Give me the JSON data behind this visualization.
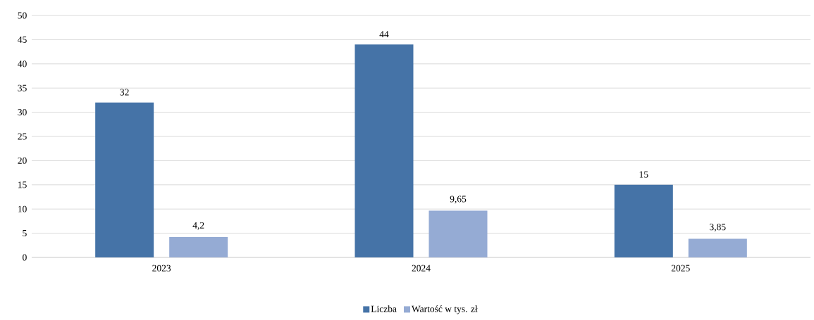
{
  "chart_data": {
    "type": "bar",
    "categories": [
      "2023",
      "2024",
      "2025"
    ],
    "series": [
      {
        "name": "Liczba",
        "color": "#4573a7",
        "values": [
          32,
          44,
          15
        ],
        "value_labels": [
          "32",
          "44",
          "15"
        ]
      },
      {
        "name": "Wartość w tys. zł",
        "color": "#95abd4",
        "values": [
          4.2,
          9.65,
          3.85
        ],
        "value_labels": [
          "4,2",
          "9,65",
          "3,85"
        ]
      }
    ],
    "ylim": [
      0,
      50
    ],
    "yticks": [
      0,
      5,
      10,
      15,
      20,
      25,
      30,
      35,
      40,
      45,
      50
    ],
    "grid": "y",
    "legend": "bottom"
  }
}
